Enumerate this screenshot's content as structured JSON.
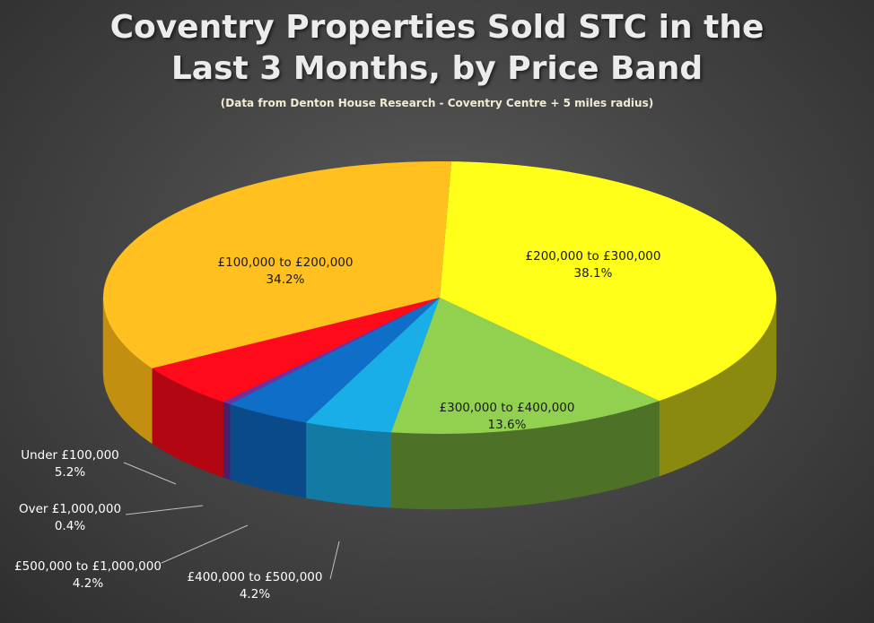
{
  "chart_data": {
    "type": "pie",
    "title_line1": "Coventry Properties Sold STC in the",
    "title_line2": "Last 3 Months, by Price Band",
    "subtitle": "(Data from Denton House Research - Coventry Centre + 5 miles radius)",
    "slices": [
      {
        "label": "£200,000 to £300,000",
        "pct_text": "38.1%",
        "value": 38.1,
        "color": "#ffff1a",
        "side": "#8a8a10"
      },
      {
        "label": "£300,000 to £400,000",
        "pct_text": "13.6%",
        "value": 13.6,
        "color": "#92d050",
        "side": "#4e7128"
      },
      {
        "label": "£400,000 to £500,000",
        "pct_text": "4.2%",
        "value": 4.2,
        "color": "#1aaee8",
        "side": "#127aa3"
      },
      {
        "label": "£500,000 to £1,000,000",
        "pct_text": "4.2%",
        "value": 4.2,
        "color": "#0f6ec8",
        "side": "#0b4a88"
      },
      {
        "label": "Over £1,000,000",
        "pct_text": "0.4%",
        "value": 0.4,
        "color": "#7030a0",
        "side": "#4a1f6a"
      },
      {
        "label": "Under £100,000",
        "pct_text": "5.2%",
        "value": 5.2,
        "color": "#ff0a1a",
        "side": "#b20612"
      },
      {
        "label": "£100,000 to £200,000",
        "pct_text": "34.2%",
        "value": 34.2,
        "color": "#ffc020",
        "side": "#c28f10"
      }
    ]
  }
}
